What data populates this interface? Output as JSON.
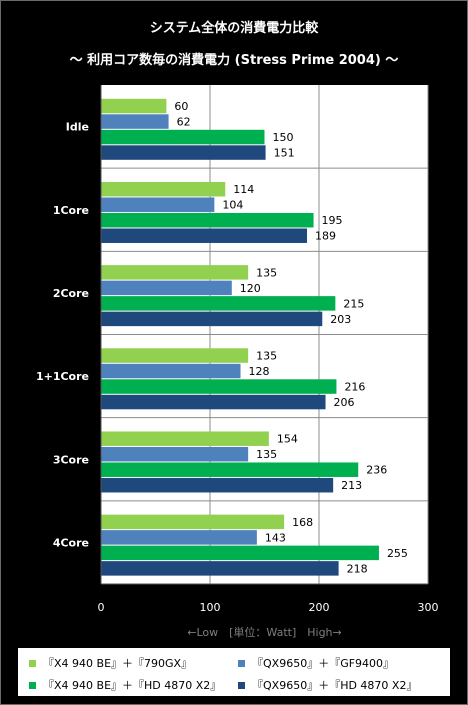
{
  "chart_data": {
    "type": "bar",
    "orientation": "horizontal",
    "title": "システム全体の消費電力比較",
    "subtitle": "～ 利用コア数毎の消費電力 (Stress Prime 2004) ～",
    "categories": [
      "Idle",
      "1Core",
      "2Core",
      "1+1Core",
      "3Core",
      "4Core"
    ],
    "series": [
      {
        "name": "『X4 940 BE』＋『790GX』",
        "color": "#92d050",
        "values": [
          60,
          114,
          135,
          135,
          154,
          168
        ]
      },
      {
        "name": "『QX9650』＋『GF9400』",
        "color": "#4f81bd",
        "values": [
          62,
          104,
          120,
          128,
          135,
          143
        ]
      },
      {
        "name": "『X4 940 BE』＋『HD 4870 X2』",
        "color": "#00b050",
        "values": [
          150,
          195,
          215,
          216,
          236,
          255
        ]
      },
      {
        "name": "『QX9650』＋『HD 4870 X2』",
        "color": "#1f497d",
        "values": [
          151,
          189,
          203,
          206,
          213,
          218
        ]
      }
    ],
    "xlim": [
      0,
      300
    ],
    "xticks": [
      "0",
      "100",
      "200",
      "300"
    ],
    "axis_note": "←Low　[単位：Watt]　High→",
    "grid": true,
    "legend": "bottom"
  }
}
